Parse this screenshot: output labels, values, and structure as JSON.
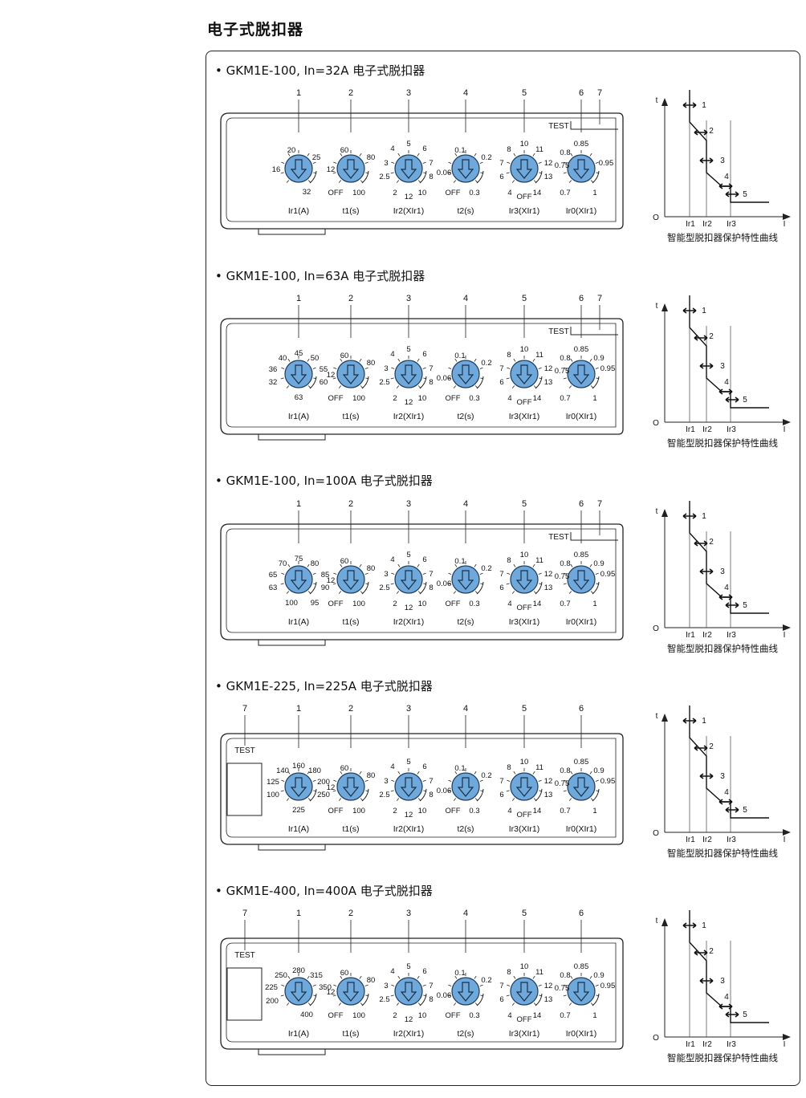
{
  "page_title": "电子式脱扣器",
  "colors": {
    "dial_fill": "#6fa9dc",
    "dial_stroke": "#1d3a5c",
    "line": "#222222"
  },
  "knob_labels": [
    "Ir1(A)",
    "t1(s)",
    "Ir2(XIr1)",
    "t2(s)",
    "Ir3(XIr1)",
    "Ir0(XIr1)"
  ],
  "test_label": "TEST",
  "curve": {
    "t_label": "t",
    "i_label": "I",
    "origin_label": "O",
    "x_ticks": [
      "Ir1",
      "Ir2",
      "Ir3"
    ],
    "point_labels": [
      "1",
      "2",
      "3",
      "4",
      "5"
    ],
    "caption": "智能型脱扣器保护特性曲线"
  },
  "sections": [
    {
      "title": "• GKM1E-100, In=32A 电子式脱扣器",
      "callouts": [
        "1",
        "2",
        "3",
        "4",
        "5",
        "6",
        "7"
      ],
      "dials": [
        {
          "name": "ir1",
          "labels": [
            "20",
            "25",
            "16",
            "32"
          ]
        },
        {
          "name": "t1",
          "labels": [
            "60",
            "80",
            "12",
            "OFF",
            "100"
          ]
        },
        {
          "name": "ir2",
          "labels": [
            "4",
            "5",
            "6",
            "3",
            "7",
            "2.5",
            "8",
            "2",
            "12",
            "10"
          ]
        },
        {
          "name": "t2",
          "labels": [
            "0.1",
            "0.2",
            "0.06",
            "OFF",
            "0.3"
          ]
        },
        {
          "name": "ir3",
          "labels": [
            "8",
            "10",
            "11",
            "7",
            "12",
            "6",
            "13",
            "4",
            "OFF",
            "14"
          ]
        },
        {
          "name": "ir0",
          "labels": [
            "0.8",
            "0.85",
            "0.75",
            "0.95",
            "0.7",
            "1"
          ]
        }
      ]
    },
    {
      "title": "• GKM1E-100, In=63A 电子式脱扣器",
      "callouts": [
        "1",
        "2",
        "3",
        "4",
        "5",
        "6",
        "7"
      ],
      "dials": [
        {
          "name": "ir1",
          "labels": [
            "40",
            "45",
            "50",
            "36",
            "55",
            "32",
            "60",
            "63"
          ]
        },
        {
          "name": "t1",
          "labels": [
            "60",
            "80",
            "12",
            "OFF",
            "100"
          ]
        },
        {
          "name": "ir2",
          "labels": [
            "4",
            "5",
            "6",
            "3",
            "7",
            "2.5",
            "8",
            "2",
            "12",
            "10"
          ]
        },
        {
          "name": "t2",
          "labels": [
            "0.1",
            "0.2",
            "0.06",
            "OFF",
            "0.3"
          ]
        },
        {
          "name": "ir3",
          "labels": [
            "8",
            "10",
            "11",
            "7",
            "12",
            "6",
            "13",
            "4",
            "OFF",
            "14"
          ]
        },
        {
          "name": "ir0",
          "labels": [
            "0.8",
            "0.85",
            "0.9",
            "0.75",
            "0.95",
            "0.7",
            "1"
          ]
        }
      ]
    },
    {
      "title": "• GKM1E-100, In=100A 电子式脱扣器",
      "callouts": [
        "1",
        "2",
        "3",
        "4",
        "5",
        "6",
        "7"
      ],
      "dials": [
        {
          "name": "ir1",
          "labels": [
            "70",
            "75",
            "80",
            "65",
            "85",
            "63",
            "90",
            "100",
            "95"
          ]
        },
        {
          "name": "t1",
          "labels": [
            "60",
            "80",
            "12",
            "OFF",
            "100"
          ]
        },
        {
          "name": "ir2",
          "labels": [
            "4",
            "5",
            "6",
            "3",
            "7",
            "2.5",
            "8",
            "2",
            "12",
            "10"
          ]
        },
        {
          "name": "t2",
          "labels": [
            "0.1",
            "0.2",
            "0.06",
            "OFF",
            "0.3"
          ]
        },
        {
          "name": "ir3",
          "labels": [
            "8",
            "10",
            "11",
            "7",
            "12",
            "6",
            "13",
            "4",
            "OFF",
            "14"
          ]
        },
        {
          "name": "ir0",
          "labels": [
            "0.8",
            "0.85",
            "0.9",
            "0.75",
            "0.95",
            "0.7",
            "1"
          ]
        }
      ]
    },
    {
      "title": "• GKM1E-225, In=225A 电子式脱扣器",
      "callouts": [
        "7",
        "1",
        "2",
        "3",
        "4",
        "5",
        "6"
      ],
      "dials": [
        {
          "name": "ir1",
          "labels": [
            "140",
            "160",
            "180",
            "125",
            "200",
            "100",
            "250",
            "225"
          ]
        },
        {
          "name": "t1",
          "labels": [
            "60",
            "80",
            "12",
            "OFF",
            "100"
          ]
        },
        {
          "name": "ir2",
          "labels": [
            "4",
            "5",
            "6",
            "3",
            "7",
            "2.5",
            "8",
            "2",
            "12",
            "10"
          ]
        },
        {
          "name": "t2",
          "labels": [
            "0.1",
            "0.2",
            "0.06",
            "OFF",
            "0.3"
          ]
        },
        {
          "name": "ir3",
          "labels": [
            "8",
            "10",
            "11",
            "7",
            "12",
            "6",
            "13",
            "4",
            "OFF",
            "14"
          ]
        },
        {
          "name": "ir0",
          "labels": [
            "0.8",
            "0.85",
            "0.9",
            "0.75",
            "0.95",
            "0.7",
            "1"
          ]
        }
      ]
    },
    {
      "title": "• GKM1E-400, In=400A 电子式脱扣器",
      "callouts": [
        "7",
        "1",
        "2",
        "3",
        "4",
        "5",
        "6"
      ],
      "dials": [
        {
          "name": "ir1",
          "labels": [
            "250",
            "280",
            "315",
            "225",
            "350",
            "200",
            "400"
          ]
        },
        {
          "name": "t1",
          "labels": [
            "60",
            "80",
            "12",
            "OFF",
            "100"
          ]
        },
        {
          "name": "ir2",
          "labels": [
            "4",
            "5",
            "6",
            "3",
            "7",
            "2.5",
            "8",
            "2",
            "12",
            "10"
          ]
        },
        {
          "name": "t2",
          "labels": [
            "0.1",
            "0.2",
            "0.06",
            "OFF",
            "0.3"
          ]
        },
        {
          "name": "ir3",
          "labels": [
            "8",
            "10",
            "11",
            "7",
            "12",
            "6",
            "13",
            "4",
            "OFF",
            "14"
          ]
        },
        {
          "name": "ir0",
          "labels": [
            "0.8",
            "0.85",
            "0.9",
            "0.75",
            "0.95",
            "0.7",
            "1"
          ]
        }
      ]
    }
  ]
}
